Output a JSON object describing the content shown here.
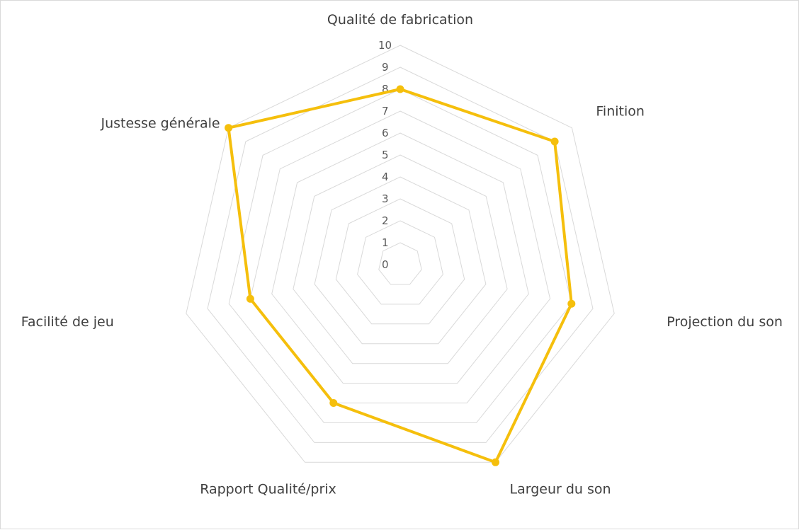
{
  "chart_data": {
    "type": "radar",
    "categories": [
      "Qualité de fabrication",
      "Finition",
      "Projection du son",
      "Largeur du son",
      "Rapport Qualité/prix",
      "Facilité de jeu",
      "Justesse générale"
    ],
    "series": [
      {
        "values": [
          8,
          9,
          8,
          10,
          7,
          7,
          10
        ]
      }
    ],
    "rlim": [
      0,
      10
    ],
    "r_ticks": [
      "0",
      "1",
      "2",
      "3",
      "4",
      "5",
      "6",
      "7",
      "8",
      "9",
      "10"
    ],
    "grid": true,
    "legend": "none",
    "colors": {
      "series": "#F5BF0C",
      "grid": "#D9D9D9"
    }
  }
}
